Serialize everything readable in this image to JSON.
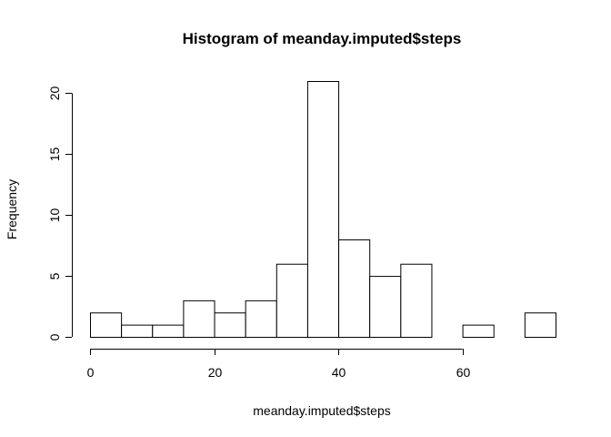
{
  "chart_data": {
    "type": "bar",
    "title": "Histogram of meanday.imputed$steps",
    "xlabel": "meanday.imputed$steps",
    "ylabel": "Frequency",
    "bin_width": 5,
    "bins": [
      {
        "start": 0,
        "end": 5,
        "count": 2
      },
      {
        "start": 5,
        "end": 10,
        "count": 1
      },
      {
        "start": 10,
        "end": 15,
        "count": 1
      },
      {
        "start": 15,
        "end": 20,
        "count": 3
      },
      {
        "start": 20,
        "end": 25,
        "count": 2
      },
      {
        "start": 25,
        "end": 30,
        "count": 3
      },
      {
        "start": 30,
        "end": 35,
        "count": 6
      },
      {
        "start": 35,
        "end": 40,
        "count": 21
      },
      {
        "start": 40,
        "end": 45,
        "count": 8
      },
      {
        "start": 45,
        "end": 50,
        "count": 5
      },
      {
        "start": 50,
        "end": 55,
        "count": 6
      },
      {
        "start": 55,
        "end": 60,
        "count": 0
      },
      {
        "start": 60,
        "end": 65,
        "count": 1
      },
      {
        "start": 65,
        "end": 70,
        "count": 0
      },
      {
        "start": 70,
        "end": 75,
        "count": 2
      }
    ],
    "xlim": [
      0,
      75
    ],
    "ylim": [
      0,
      21
    ],
    "x_ticks": [
      0,
      20,
      40,
      60
    ],
    "y_ticks": [
      0,
      5,
      10,
      15,
      20
    ],
    "grid": false
  }
}
